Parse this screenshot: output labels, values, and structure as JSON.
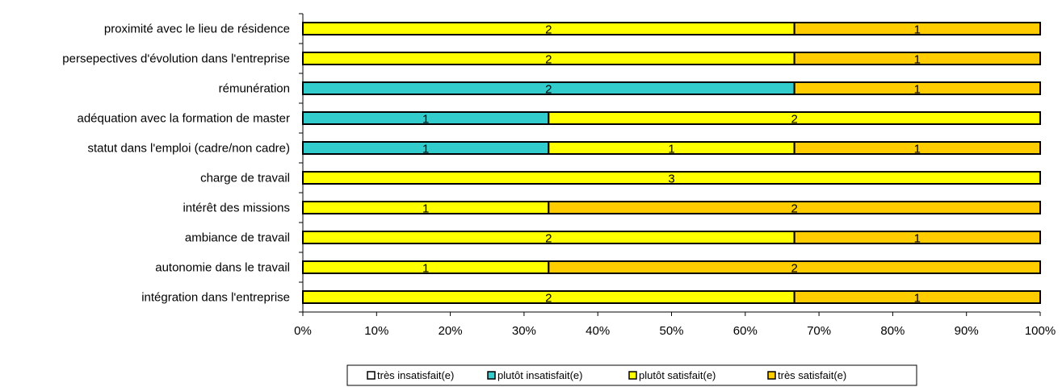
{
  "chart_data": {
    "type": "bar",
    "orientation": "horizontal",
    "stacked": "percent",
    "categories": [
      "proximité avec le lieu de résidence",
      "persepectives d'évolution dans l'entreprise",
      "rémunération",
      "adéquation avec la formation de master",
      "statut dans l'emploi (cadre/non cadre)",
      "charge de travail",
      "intérêt des missions",
      "ambiance de travail",
      "autonomie dans le travail",
      "intégration dans l'entreprise"
    ],
    "series": [
      {
        "name": "très insatisfait(e)",
        "color": "#ffffff",
        "values": [
          0,
          0,
          0,
          0,
          0,
          0,
          0,
          0,
          0,
          0
        ]
      },
      {
        "name": "plutôt insatisfait(e)",
        "color": "#33cccc",
        "values": [
          0,
          0,
          2,
          1,
          1,
          0,
          0,
          0,
          0,
          0
        ]
      },
      {
        "name": "plutôt satisfait(e)",
        "color": "#ffff00",
        "values": [
          2,
          2,
          0,
          2,
          1,
          3,
          1,
          2,
          1,
          2
        ]
      },
      {
        "name": "très satisfait(e)",
        "color": "#ffcc00",
        "values": [
          1,
          1,
          1,
          0,
          1,
          0,
          2,
          1,
          2,
          1
        ]
      }
    ],
    "x_ticks": [
      "0%",
      "10%",
      "20%",
      "30%",
      "40%",
      "50%",
      "60%",
      "70%",
      "80%",
      "90%",
      "100%"
    ],
    "xlim": [
      0,
      100
    ],
    "grid": false,
    "legend_position": "bottom"
  }
}
